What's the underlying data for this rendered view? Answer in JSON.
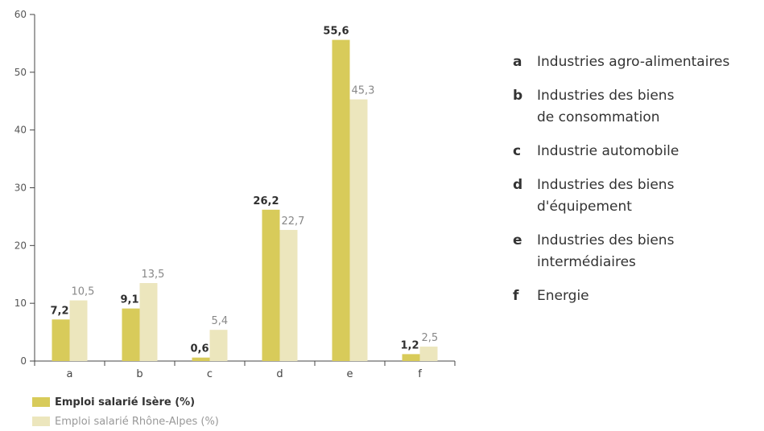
{
  "chart_data": {
    "type": "bar",
    "categories": [
      "a",
      "b",
      "c",
      "d",
      "e",
      "f"
    ],
    "series": [
      {
        "name": "Emploi salarié Isère (%)",
        "values": [
          7.2,
          9.1,
          0.6,
          26.2,
          55.6,
          1.2
        ],
        "labels": [
          "7,2",
          "9,1",
          "0,6",
          "26,2",
          "55,6",
          "1,2"
        ],
        "color": "#d8cb5a"
      },
      {
        "name": "Emploi salarié Rhône-Alpes  (%)",
        "values": [
          10.5,
          13.5,
          5.4,
          22.7,
          45.3,
          2.5
        ],
        "labels": [
          "10,5",
          "13,5",
          "5,4",
          "22,7",
          "45,3",
          "2,5"
        ],
        "color": "#ece6bd"
      }
    ],
    "yticks": [
      "0",
      "10",
      "20",
      "30",
      "40",
      "50",
      "60"
    ],
    "ylim": [
      0,
      60
    ],
    "grid": false,
    "legend_position": "bottom-left"
  },
  "category_keys": [
    {
      "letter": "a",
      "text": "Industries agro-alimentaires"
    },
    {
      "letter": "b",
      "text": "Industries des biens\nde consommation"
    },
    {
      "letter": "c",
      "text": "Industrie automobile"
    },
    {
      "letter": "d",
      "text": "Industries des biens\nd'équipement"
    },
    {
      "letter": "e",
      "text": "Industries des biens\nintermédiaires"
    },
    {
      "letter": "f",
      "text": "Energie"
    }
  ],
  "colors": {
    "isere": "#d8cb5a",
    "rhone_alpes": "#ece6bd",
    "axis": "#444444"
  }
}
